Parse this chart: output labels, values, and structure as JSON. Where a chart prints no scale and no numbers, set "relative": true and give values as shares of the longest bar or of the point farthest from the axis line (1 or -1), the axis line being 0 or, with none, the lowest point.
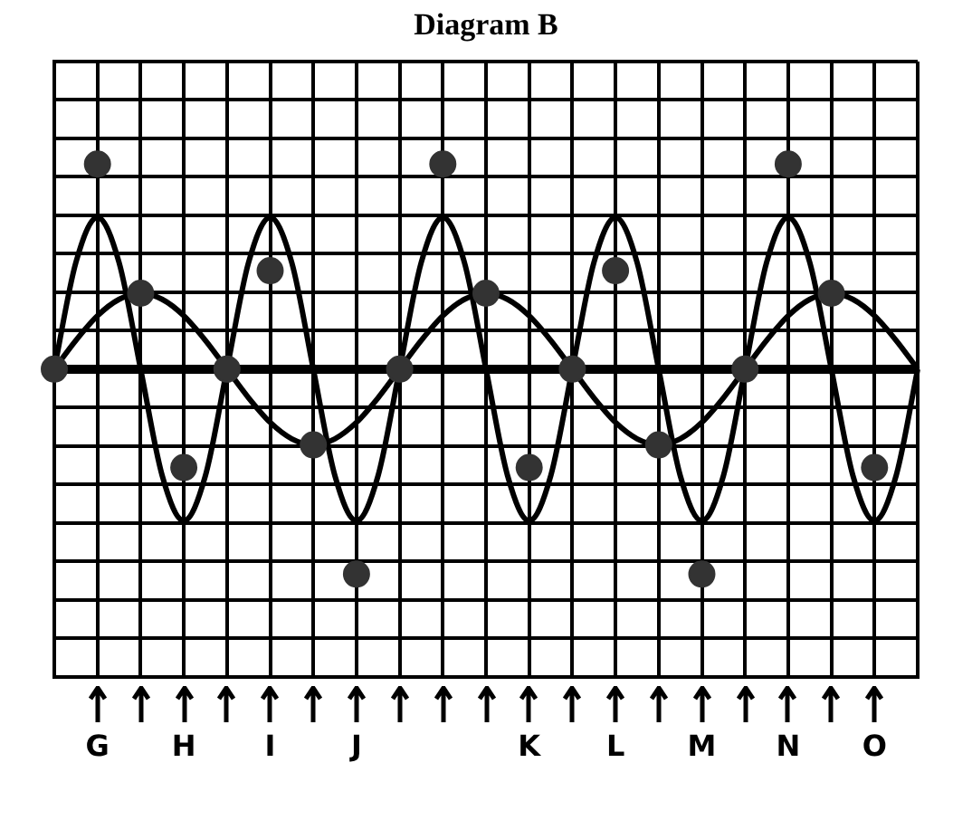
{
  "chart_data": {
    "type": "line",
    "title": "Diagram B",
    "relative": true,
    "grid": true,
    "legend": false,
    "tick_labels": "x",
    "categories": [
      null,
      null,
      "G",
      null,
      null,
      null,
      "H",
      null,
      null,
      null,
      "I",
      null,
      null,
      null,
      "J",
      null,
      null,
      null,
      null,
      null,
      null,
      null,
      "K",
      null,
      null,
      null,
      "L",
      null,
      null,
      null,
      "M",
      null,
      null,
      null,
      "N",
      null,
      null,
      null,
      "O",
      null,
      null
    ],
    "series": [
      {
        "type": "line",
        "color": "#000000",
        "values": [
          0,
          0.52,
          0.74,
          0.52,
          0,
          -0.52,
          -0.74,
          -0.52,
          0,
          0.52,
          0.74,
          0.52,
          0,
          -0.52,
          -0.74,
          -0.52,
          0,
          0.52,
          0.74,
          0.52,
          0,
          -0.52,
          -0.74,
          -0.52,
          0,
          0.52,
          0.74,
          0.52,
          0,
          -0.52,
          -0.74,
          -0.52,
          0,
          0.52,
          0.74,
          0.52,
          0,
          -0.52,
          -0.74,
          -0.52,
          0
        ]
      },
      {
        "type": "line",
        "color": "#000000",
        "values": [
          0,
          0.14,
          0.26,
          0.34,
          0.37,
          0.34,
          0.26,
          0.14,
          0,
          -0.14,
          -0.26,
          -0.34,
          -0.37,
          -0.34,
          -0.26,
          -0.14,
          0,
          0.14,
          0.26,
          0.34,
          0.37,
          0.34,
          0.26,
          0.14,
          0,
          -0.14,
          -0.26,
          -0.34,
          -0.37,
          -0.34,
          -0.26,
          -0.14,
          0,
          0.14,
          0.26,
          0.34,
          0.37,
          0.34,
          0.26,
          0.14,
          0
        ]
      },
      {
        "type": "scatter",
        "color": "#333333",
        "values": [
          0,
          null,
          1,
          null,
          0.37,
          null,
          -0.48,
          null,
          0,
          null,
          0.48,
          null,
          -0.37,
          null,
          -1,
          null,
          0,
          null,
          1,
          null,
          0.37,
          null,
          -0.48,
          null,
          0,
          null,
          0.48,
          null,
          -0.37,
          null,
          -1,
          null,
          0,
          null,
          1,
          null,
          0.37,
          null,
          -0.48,
          null,
          null
        ]
      }
    ]
  }
}
